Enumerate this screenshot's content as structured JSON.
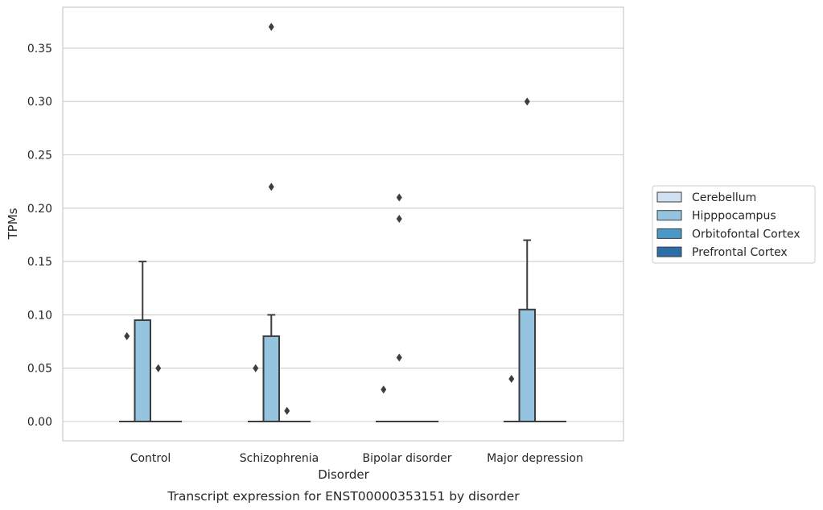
{
  "chart_data": {
    "type": "box",
    "title": "Transcript expression for ENST00000353151 by disorder",
    "xlabel": "Disorder",
    "ylabel": "TPMs",
    "categories": [
      "Control",
      "Schizophrenia",
      "Bipolar disorder",
      "Major depression"
    ],
    "ylim": [
      -0.018,
      0.389
    ],
    "yticks": [
      0.0,
      0.05,
      0.1,
      0.15,
      0.2,
      0.25,
      0.3,
      0.35
    ],
    "ytick_labels": [
      "0.00",
      "0.05",
      "0.10",
      "0.15",
      "0.20",
      "0.25",
      "0.30",
      "0.35"
    ],
    "grid": true,
    "legend_position": "right",
    "series": [
      {
        "name": "Cerebellum",
        "color": "#d0e1f2",
        "boxes": [
          {
            "q1": 0,
            "median": 0,
            "q3": 0,
            "whisker_low": 0,
            "whisker_high": 0,
            "outliers": [
              0.08
            ]
          },
          {
            "q1": 0,
            "median": 0,
            "q3": 0,
            "whisker_low": 0,
            "whisker_high": 0,
            "outliers": [
              0.05
            ]
          },
          {
            "q1": 0,
            "median": 0,
            "q3": 0,
            "whisker_low": 0,
            "whisker_high": 0,
            "outliers": [
              0.03
            ]
          },
          {
            "q1": 0,
            "median": 0,
            "q3": 0,
            "whisker_low": 0,
            "whisker_high": 0,
            "outliers": [
              0.04
            ]
          }
        ]
      },
      {
        "name": "Hipppocampus",
        "color": "#94c4df",
        "boxes": [
          {
            "q1": 0,
            "median": 0,
            "q3": 0.095,
            "whisker_low": 0,
            "whisker_high": 0.15,
            "outliers": []
          },
          {
            "q1": 0,
            "median": 0,
            "q3": 0.08,
            "whisker_low": 0,
            "whisker_high": 0.1,
            "outliers": [
              0.22,
              0.37
            ]
          },
          {
            "q1": 0,
            "median": 0,
            "q3": 0,
            "whisker_low": 0,
            "whisker_high": 0,
            "outliers": [
              0.06,
              0.19,
              0.21
            ]
          },
          {
            "q1": 0,
            "median": 0,
            "q3": 0.105,
            "whisker_low": 0,
            "whisker_high": 0.17,
            "outliers": [
              0.3
            ]
          }
        ]
      },
      {
        "name": "Orbitofontal Cortex",
        "color": "#4a98c9",
        "boxes": [
          {
            "q1": 0,
            "median": 0,
            "q3": 0,
            "whisker_low": 0,
            "whisker_high": 0,
            "outliers": [
              0.05
            ]
          },
          {
            "q1": 0,
            "median": 0,
            "q3": 0,
            "whisker_low": 0,
            "whisker_high": 0,
            "outliers": [
              0.01
            ]
          },
          {
            "q1": 0,
            "median": 0,
            "q3": 0,
            "whisker_low": 0,
            "whisker_high": 0,
            "outliers": []
          },
          {
            "q1": 0,
            "median": 0,
            "q3": 0,
            "whisker_low": 0,
            "whisker_high": 0,
            "outliers": []
          }
        ]
      },
      {
        "name": "Prefrontal Cortex",
        "color": "#2e6ea8",
        "boxes": [
          {
            "q1": 0,
            "median": 0,
            "q3": 0,
            "whisker_low": 0,
            "whisker_high": 0,
            "outliers": []
          },
          {
            "q1": 0,
            "median": 0,
            "q3": 0,
            "whisker_low": 0,
            "whisker_high": 0,
            "outliers": []
          },
          {
            "q1": 0,
            "median": 0,
            "q3": 0,
            "whisker_low": 0,
            "whisker_high": 0,
            "outliers": []
          },
          {
            "q1": 0,
            "median": 0,
            "q3": 0,
            "whisker_low": 0,
            "whisker_high": 0,
            "outliers": []
          }
        ]
      }
    ]
  }
}
